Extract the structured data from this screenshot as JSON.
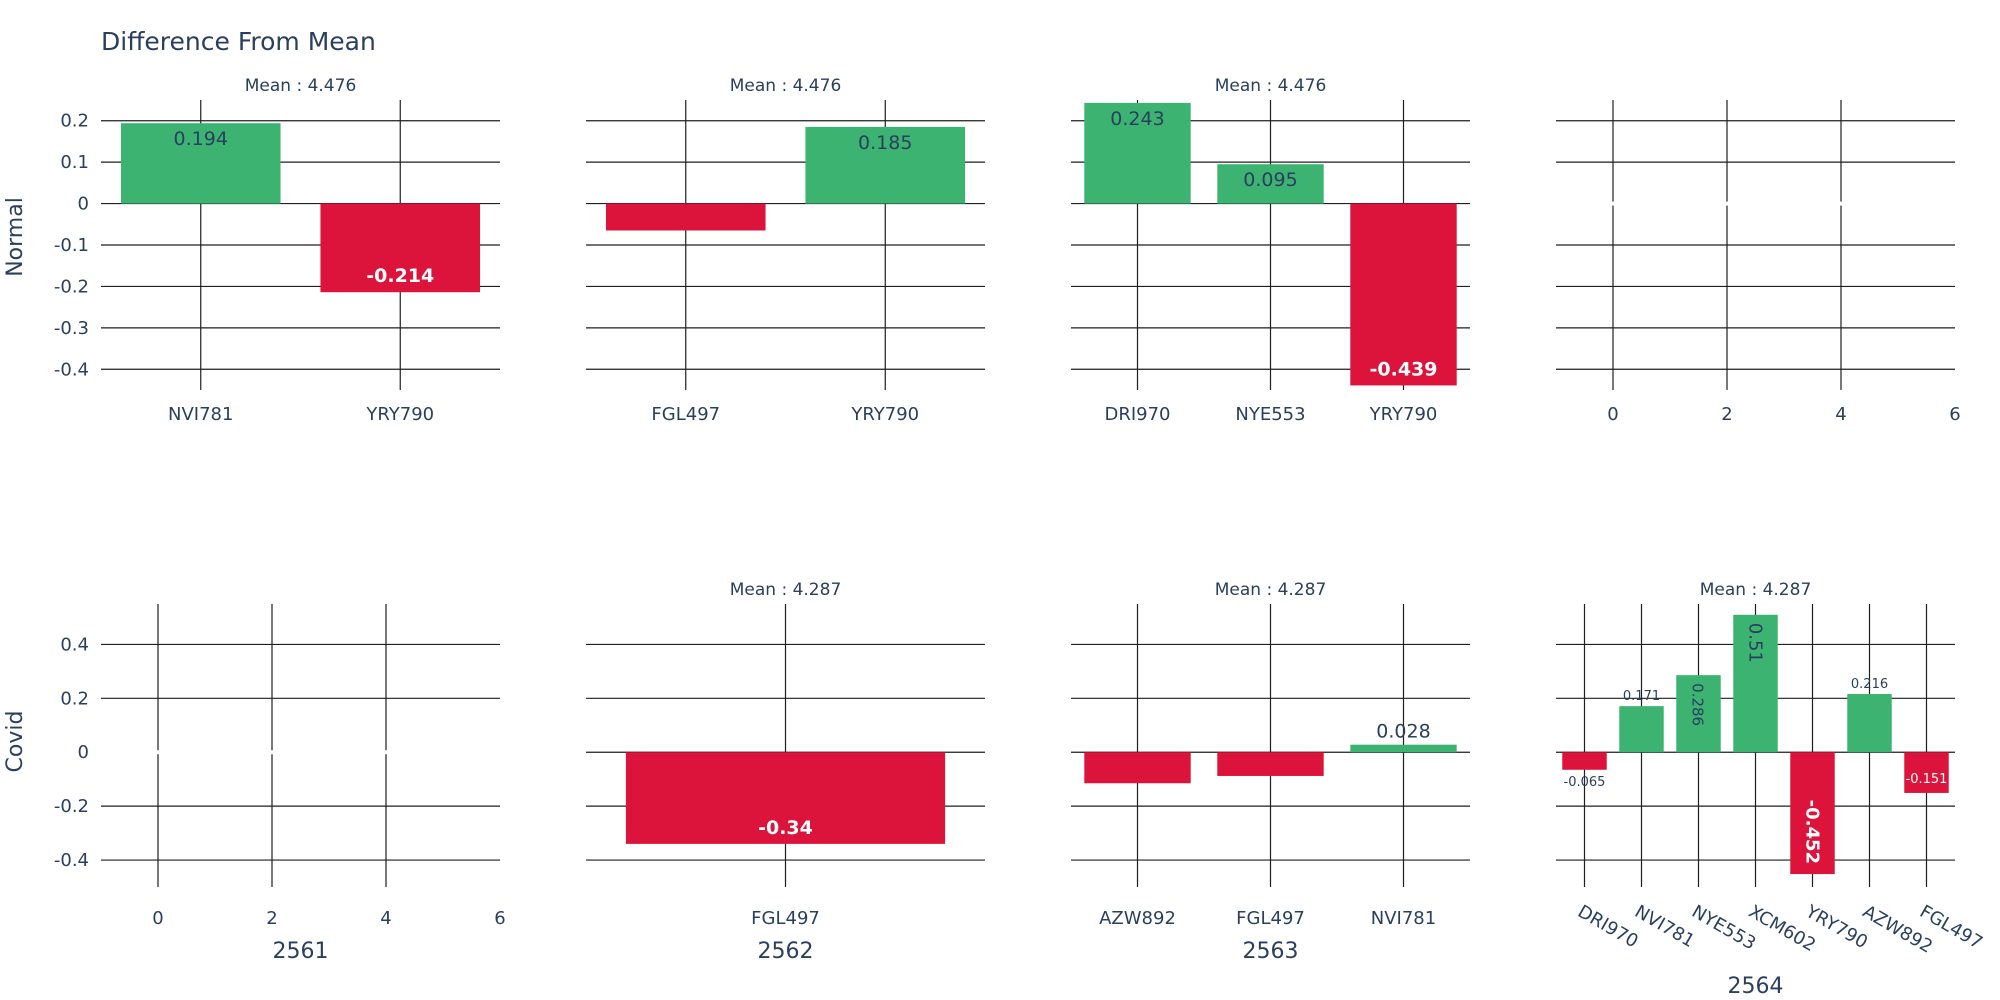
{
  "title": "Difference From Mean",
  "colors": {
    "positive": "#3cb371",
    "negative": "#dc143c",
    "text": "#2a3f5f",
    "grid": "#1f1f1f"
  },
  "chart_data": [
    {
      "type": "bar",
      "row": "Normal",
      "col": 1,
      "column_title": "2561",
      "annotation": "Mean : 4.476",
      "categories": [
        "NVI781",
        "YRY790"
      ],
      "values": [
        0.194,
        -0.214
      ],
      "value_labels": [
        "0.194",
        "-0.214"
      ],
      "ylim": [
        -0.45,
        0.25
      ],
      "yticks": [
        0.2,
        0.1,
        0,
        -0.1,
        -0.2,
        -0.3,
        -0.4
      ]
    },
    {
      "type": "bar",
      "row": "Normal",
      "col": 2,
      "column_title": "2562",
      "annotation": "Mean : 4.476",
      "categories": [
        "FGL497",
        "YRY790"
      ],
      "values": [
        -0.065,
        0.185
      ],
      "value_labels": [
        "-0.065",
        "0.185"
      ],
      "ylim": [
        -0.45,
        0.25
      ],
      "yticks": [
        0.2,
        0.1,
        0,
        -0.1,
        -0.2,
        -0.3,
        -0.4
      ]
    },
    {
      "type": "bar",
      "row": "Normal",
      "col": 3,
      "column_title": "2563",
      "annotation": "Mean : 4.476",
      "categories": [
        "DRI970",
        "NYE553",
        "YRY790"
      ],
      "values": [
        0.243,
        0.095,
        -0.439
      ],
      "value_labels": [
        "0.243",
        "0.095",
        "-0.439"
      ],
      "ylim": [
        -0.45,
        0.25
      ],
      "yticks": [
        0.2,
        0.1,
        0,
        -0.1,
        -0.2,
        -0.3,
        -0.4
      ]
    },
    {
      "type": "bar",
      "row": "Normal",
      "col": 4,
      "column_title": "2564",
      "annotation": "",
      "categories": [],
      "values": [],
      "value_labels": [],
      "ylim": [
        -0.45,
        0.25
      ],
      "yticks": [
        0.2,
        0.1,
        0,
        -0.1,
        -0.2,
        -0.3,
        -0.4
      ],
      "xlim": [
        -1,
        6
      ],
      "xticks": [
        0,
        2,
        4,
        6
      ]
    },
    {
      "type": "bar",
      "row": "Covid",
      "col": 1,
      "column_title": "2561",
      "annotation": "",
      "categories": [],
      "values": [],
      "value_labels": [],
      "ylim": [
        -0.5,
        0.55
      ],
      "yticks": [
        0.4,
        0.2,
        0,
        -0.2,
        -0.4
      ],
      "xlim": [
        -1,
        6
      ],
      "xticks": [
        0,
        2,
        4,
        6
      ]
    },
    {
      "type": "bar",
      "row": "Covid",
      "col": 2,
      "column_title": "2562",
      "annotation": "Mean : 4.287",
      "categories": [
        "FGL497"
      ],
      "values": [
        -0.34
      ],
      "value_labels": [
        "-0.34"
      ],
      "ylim": [
        -0.5,
        0.55
      ],
      "yticks": [
        0.4,
        0.2,
        0,
        -0.2,
        -0.4
      ]
    },
    {
      "type": "bar",
      "row": "Covid",
      "col": 3,
      "column_title": "2563",
      "annotation": "Mean : 4.287",
      "categories": [
        "AZW892",
        "FGL497",
        "NVI781"
      ],
      "values": [
        -0.115,
        -0.088,
        0.028
      ],
      "value_labels": [
        "-0.115",
        "-0.088",
        "0.028"
      ],
      "ylim": [
        -0.5,
        0.55
      ],
      "yticks": [
        0.4,
        0.2,
        0,
        -0.2,
        -0.4
      ]
    },
    {
      "type": "bar",
      "row": "Covid",
      "col": 4,
      "column_title": "2564",
      "annotation": "Mean : 4.287",
      "categories": [
        "DRI970",
        "NVI781",
        "NYE553",
        "XCM602",
        "YRY790",
        "AZW892",
        "FGL497"
      ],
      "values": [
        -0.065,
        0.171,
        0.286,
        0.51,
        -0.452,
        0.216,
        -0.151
      ],
      "value_labels": [
        "-0.065",
        "0.171",
        "0.286",
        "0.51",
        "-0.452",
        "0.216",
        "-0.151"
      ],
      "ylim": [
        -0.5,
        0.55
      ],
      "yticks": [
        0.4,
        0.2,
        0,
        -0.2,
        -0.4
      ],
      "rotated_xticks": true
    }
  ]
}
